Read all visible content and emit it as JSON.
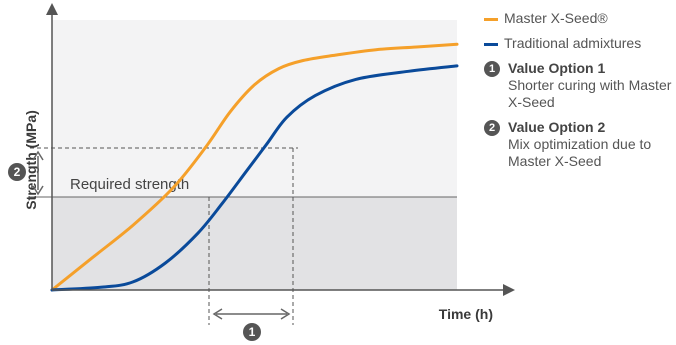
{
  "chart_data": {
    "type": "line",
    "xlabel": "Time (h)",
    "ylabel": "Strength (MPa)",
    "xlim": [
      0,
      100
    ],
    "ylim": [
      0,
      100
    ],
    "grid": false,
    "legend_position": "right",
    "series": [
      {
        "name": "Master X-Seed®",
        "color": "#f5a02a",
        "x": [
          0,
          10,
          20,
          30,
          38,
          44,
          50,
          56,
          62,
          70,
          80,
          90,
          100
        ],
        "y": [
          0,
          12,
          24,
          38,
          53,
          66,
          76,
          82,
          85,
          87,
          89,
          90,
          91
        ]
      },
      {
        "name": "Traditional admixtures",
        "color": "#0a4a9a",
        "x": [
          0,
          12,
          20,
          28,
          36,
          42,
          48,
          53,
          58,
          65,
          75,
          88,
          100
        ],
        "y": [
          0,
          1,
          3,
          10,
          21,
          32,
          44,
          54,
          64,
          72,
          78,
          81,
          83
        ]
      }
    ],
    "annotations": {
      "required_strength": {
        "label": "Required strength",
        "y": 53
      },
      "option_1_marker": "1",
      "option_2_marker": "2"
    }
  },
  "legend": {
    "series": [
      {
        "label": "Master X-Seed®",
        "color": "#f5a02a"
      },
      {
        "label": "Traditional admixtures",
        "color": "#0a4a9a"
      }
    ],
    "options": [
      {
        "badge": "1",
        "title": "Value Option 1",
        "desc": "Shorter curing with Master X-Seed"
      },
      {
        "badge": "2",
        "title": "Value Option 2",
        "desc": "Mix optimization due to Master X-Seed"
      }
    ]
  }
}
